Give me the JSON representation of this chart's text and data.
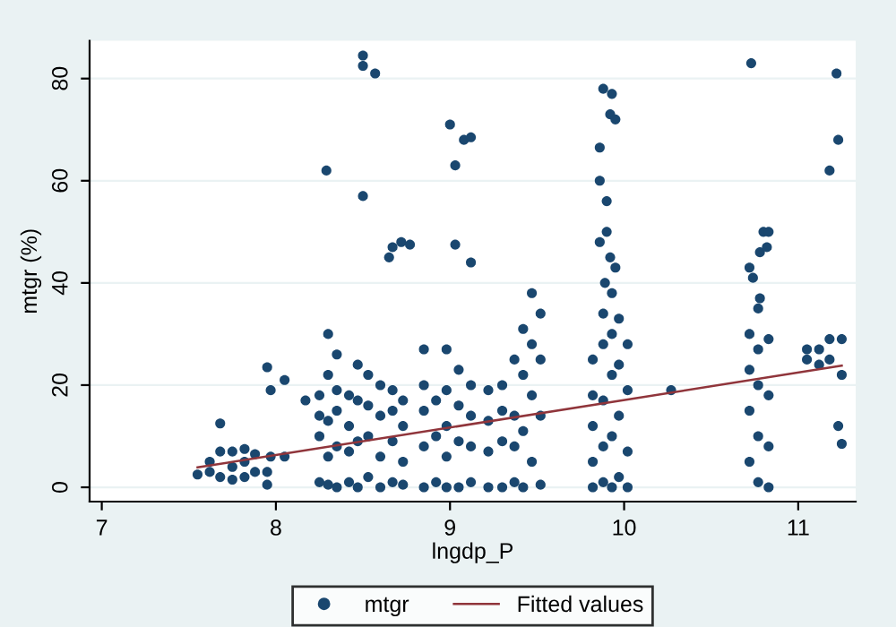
{
  "chart_data": {
    "type": "scatter",
    "xlabel": "lngdp_P",
    "ylabel": "mtgr (%)",
    "xlim": [
      6.93,
      11.33
    ],
    "ylim": [
      -2.8,
      87.4
    ],
    "xticks": [
      7,
      8,
      9,
      10,
      11
    ],
    "yticks": [
      0,
      20,
      40,
      60,
      80
    ],
    "grid": "y",
    "legend": "bottom",
    "marker": "circle",
    "series": [
      {
        "name": "mtgr",
        "color": "#1a476f",
        "x": [
          7.55,
          7.62,
          7.62,
          7.68,
          7.68,
          7.68,
          7.75,
          7.75,
          7.75,
          7.82,
          7.82,
          7.82,
          7.88,
          7.88,
          7.95,
          7.95,
          7.95,
          7.97,
          7.97,
          8.05,
          8.05,
          8.17,
          8.25,
          8.25,
          8.25,
          8.25,
          8.3,
          8.3,
          8.3,
          8.3,
          8.3,
          8.35,
          8.35,
          8.35,
          8.35,
          8.35,
          8.42,
          8.42,
          8.42,
          8.42,
          8.47,
          8.47,
          8.47,
          8.47,
          8.53,
          8.53,
          8.53,
          8.53,
          8.6,
          8.6,
          8.6,
          8.6,
          8.67,
          8.67,
          8.67,
          8.67,
          8.73,
          8.73,
          8.73,
          8.73,
          8.85,
          8.85,
          8.85,
          8.85,
          8.85,
          8.92,
          8.92,
          8.92,
          8.98,
          8.98,
          8.98,
          8.98,
          8.98,
          9.05,
          9.05,
          9.05,
          9.05,
          9.12,
          9.12,
          9.12,
          9.12,
          9.22,
          9.22,
          9.22,
          9.22,
          9.3,
          9.3,
          9.3,
          9.3,
          9.37,
          9.37,
          9.37,
          9.37,
          9.42,
          9.42,
          9.42,
          9.42,
          9.47,
          9.47,
          9.47,
          9.47,
          9.52,
          9.52,
          9.52,
          9.52,
          9.82,
          9.82,
          9.82,
          9.82,
          9.82,
          9.88,
          9.88,
          9.88,
          9.88,
          9.88,
          9.93,
          9.93,
          9.93,
          9.93,
          9.93,
          9.97,
          9.97,
          9.97,
          9.97,
          10.02,
          10.02,
          10.02,
          10.02,
          10.27,
          10.72,
          10.72,
          10.72,
          10.72,
          10.77,
          10.77,
          10.77,
          10.77,
          10.77,
          10.83,
          10.83,
          10.83,
          10.83,
          11.05,
          11.05,
          11.12,
          11.12,
          11.18,
          11.18,
          11.25,
          11.25,
          8.5,
          8.5,
          8.57,
          8.29,
          8.5,
          8.65,
          8.67,
          8.72,
          8.77,
          9.0,
          9.08,
          9.12,
          9.03,
          9.03,
          9.12,
          9.88,
          9.93,
          9.92,
          9.95,
          9.86,
          9.86,
          9.9,
          9.9,
          9.86,
          9.92,
          9.95,
          9.89,
          10.73,
          10.72,
          10.74,
          10.8,
          10.83,
          10.78,
          10.82,
          10.78,
          11.22,
          11.23,
          11.18,
          11.23,
          11.25
        ],
        "values": [
          2.5,
          3,
          5,
          2,
          7,
          12.5,
          1.5,
          4,
          7,
          2,
          5,
          7.5,
          3,
          6.5,
          0.5,
          3,
          23.5,
          19,
          6,
          6,
          21,
          17,
          1,
          10,
          14,
          18,
          0.5,
          6,
          13,
          22,
          30,
          0,
          8,
          15,
          19,
          26,
          1,
          7,
          12,
          18,
          0,
          9,
          17,
          24,
          2,
          10,
          16,
          22,
          0,
          6,
          14,
          20,
          1,
          9,
          15,
          19,
          0.5,
          5,
          12,
          17,
          0,
          8,
          15,
          20,
          27,
          1,
          10,
          17,
          0,
          6,
          12,
          19,
          27,
          0,
          9,
          16,
          23,
          1,
          8,
          14,
          20,
          0,
          7,
          13,
          19,
          0,
          9,
          15,
          20,
          1,
          8,
          14,
          25,
          0,
          11,
          22,
          31,
          5,
          18,
          28,
          38,
          0.5,
          14,
          25,
          34,
          0,
          5,
          12,
          18,
          25,
          1,
          8,
          17,
          28,
          34,
          0,
          10,
          22,
          30,
          38,
          2,
          14,
          24,
          33,
          0,
          7,
          19,
          28,
          19,
          5,
          15,
          23,
          30,
          1,
          10,
          20,
          27,
          35,
          0,
          8,
          18,
          29,
          27,
          25,
          24,
          27,
          25,
          29,
          22,
          29,
          84.5,
          82.5,
          81,
          62,
          57,
          45,
          47,
          48,
          47.5,
          71,
          68,
          68.5,
          63,
          47.5,
          44,
          78,
          77,
          73,
          72,
          66.5,
          60,
          56,
          50,
          48,
          45,
          43,
          40,
          83,
          43,
          41,
          50,
          50,
          46,
          47,
          37,
          81,
          68,
          62,
          12,
          8.5
        ]
      },
      {
        "name": "Fitted values",
        "color": "#90353b",
        "type": "line",
        "marker": "none",
        "x": [
          7.55,
          11.25
        ],
        "values": [
          3.9,
          23.8
        ]
      }
    ]
  }
}
